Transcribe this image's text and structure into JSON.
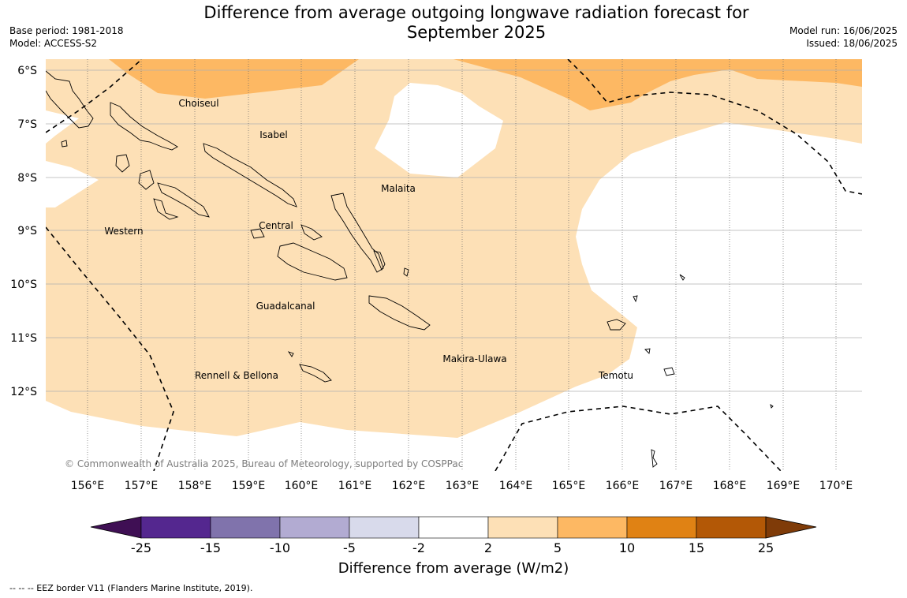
{
  "title": "Difference from average outgoing longwave radiation forecast for September 2025",
  "title_line1": "Difference from average outgoing longwave radiation forecast for",
  "title_line2": "September 2025",
  "meta_left": {
    "base_period": "Base period: 1981-2018",
    "model": "Model: ACCESS-S2"
  },
  "meta_right": {
    "model_run": "Model run: 16/06/2025",
    "issued": "Issued: 18/06/2025"
  },
  "map": {
    "lat_labels": [
      "6°S",
      "7°S",
      "8°S",
      "9°S",
      "10°S",
      "11°S",
      "12°S"
    ],
    "lon_labels": [
      "156°E",
      "157°E",
      "158°E",
      "159°E",
      "160°E",
      "161°E",
      "162°E",
      "163°E",
      "164°E",
      "165°E",
      "166°E",
      "167°E",
      "168°E",
      "169°E",
      "170°E"
    ],
    "provinces": [
      "Choiseul",
      "Isabel",
      "Malaita",
      "Western",
      "Central",
      "Guadalcanal",
      "Makira-Ulawa",
      "Rennell & Bellona",
      "Temotu"
    ],
    "copyright": "© Commonwealth of Australia 2025, Bureau of Meteorology, supported by COSPPac"
  },
  "colorbar": {
    "ticks": [
      "-25",
      "-15",
      "-10",
      "-5",
      "-2",
      "2",
      "5",
      "10",
      "15",
      "25"
    ],
    "colors": [
      "#3f0f54",
      "#54278f",
      "#8073ac",
      "#b2abd2",
      "#d8daeb",
      "#ffffff",
      "#fde0b6",
      "#fdb863",
      "#e08214",
      "#b35806",
      "#7f3b08"
    ],
    "label": "Difference from average (W/m2)"
  },
  "footer": "--  --  -- EEZ border V11 (Flanders Marine Institute, 2019)."
}
